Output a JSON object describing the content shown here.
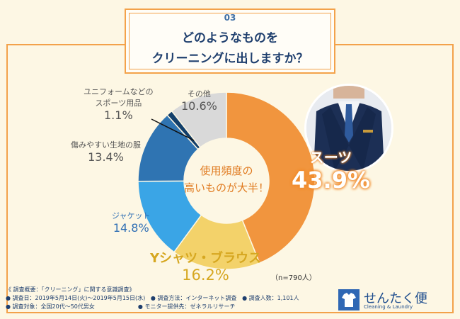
{
  "header": {
    "number": "03",
    "title_line1": "どのようなものを",
    "title_line2": "クリーニングに出しますか？"
  },
  "center_text": {
    "line1": "使用頻度の",
    "line2": "高いものが大半！"
  },
  "colors": {
    "suits": "#f1953e",
    "yshirts": "#f3d26a",
    "jacket": "#3aa5e6",
    "damaged": "#2f74b2",
    "uniform": "#123f6b",
    "other": "#d9d9d9",
    "frame": "#f3a24a",
    "background": "#fdf7e4",
    "accent_orange": "#f08a2a",
    "accent_yellow": "#d6a720",
    "blue_label": "#2f6fb4"
  },
  "chart_data": {
    "type": "pie",
    "variant": "donut",
    "slices": [
      {
        "label": "スーツ",
        "value": 43.9,
        "display": "43.9%"
      },
      {
        "label": "Yシャツ・ブラウス",
        "value": 16.2,
        "display": "16.2%"
      },
      {
        "label": "ジャケット",
        "value": 14.8,
        "display": "14.8%"
      },
      {
        "label": "傷みやすい生地の服",
        "value": 13.4,
        "display": "13.4%"
      },
      {
        "label_line1": "ユニフォームなどの",
        "label_line2": "スポーツ用品",
        "value": 1.1,
        "display": "1.1%"
      },
      {
        "label": "その他",
        "value": 10.6,
        "display": "10.6%"
      }
    ],
    "n_note": "（n=790人）"
  },
  "survey": {
    "heading": "《 調査概要：「クリーニング」に関する意識調査》",
    "period": "● 調査日：2019年5月14日(火)～2019年5月15日(水)",
    "method": "● 調査方法：インターネット調査",
    "count": "● 調査人数：1,101人",
    "target": "● 調査対象：全国20代～50代男女",
    "provider": "● モニター提供先：ゼネラルリサーチ"
  },
  "logo": {
    "name": "せんたく便",
    "sub": "Cleaning & Laundry",
    "icon": "shirt-icon"
  }
}
